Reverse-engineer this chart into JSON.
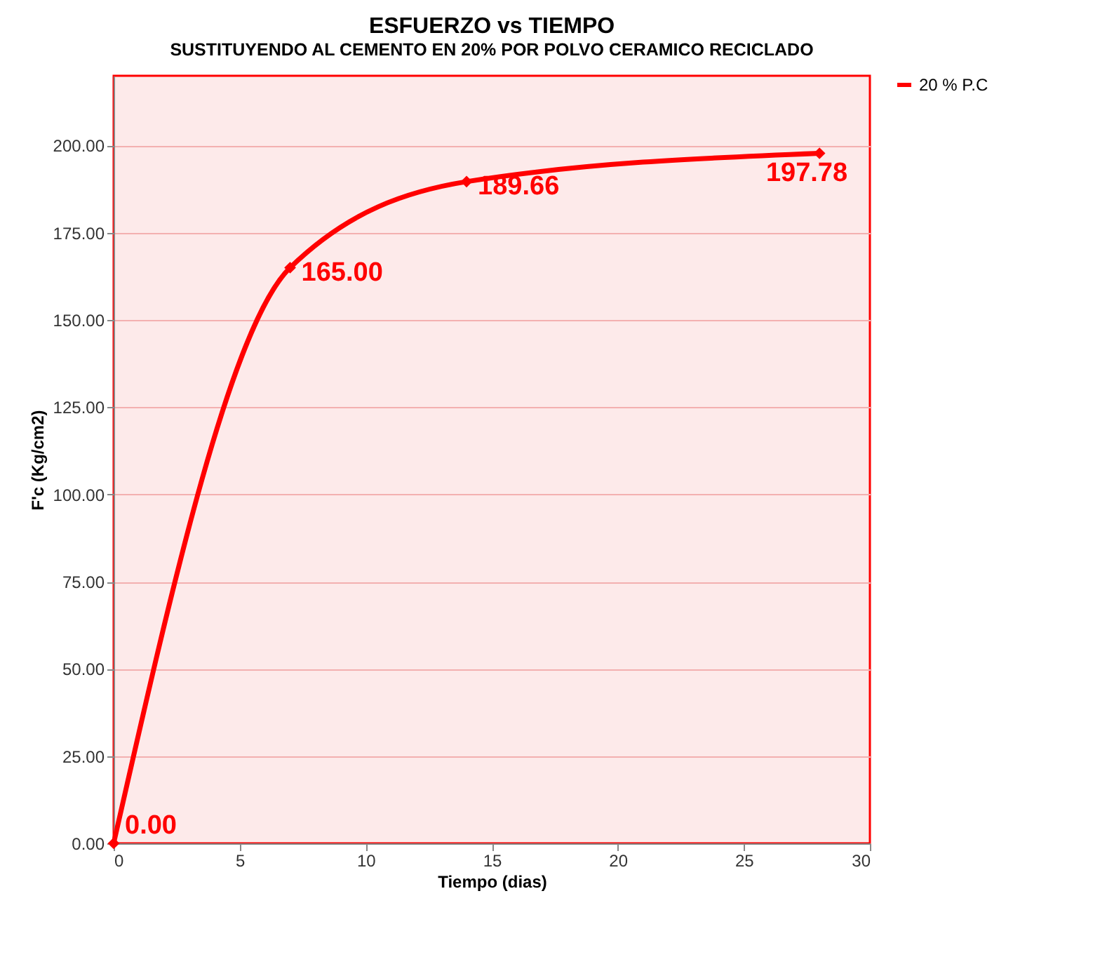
{
  "chart_data": {
    "type": "line",
    "title": "ESFUERZO vs TIEMPO",
    "subtitle": "SUSTITUYENDO AL CEMENTO EN 20% POR POLVO CERAMICO RECICLADO",
    "xlabel": "Tiempo (dias)",
    "ylabel": "F'c (Kg/cm2)",
    "x": [
      0,
      7,
      14,
      28
    ],
    "series": [
      {
        "name": "20 % P.C",
        "color": "#ff0000",
        "values": [
          0,
          165,
          189.66,
          197.78
        ],
        "value_labels": [
          "0.00",
          "165.00",
          "189.66",
          "197.78"
        ]
      }
    ],
    "xlim": [
      0,
      30
    ],
    "xticks": [
      0,
      5,
      10,
      15,
      20,
      25,
      30
    ],
    "ylim": [
      0,
      220
    ],
    "yticks": [
      {
        "value": 0,
        "label": "0.00"
      },
      {
        "value": 25,
        "label": "25.00"
      },
      {
        "value": 50,
        "label": "50.00"
      },
      {
        "value": 75,
        "label": "75.00"
      },
      {
        "value": 100,
        "label": "100.00"
      },
      {
        "value": 125,
        "label": "125.00"
      },
      {
        "value": 150,
        "label": "150.00"
      },
      {
        "value": 175,
        "label": "175.00"
      },
      {
        "value": 200,
        "label": "200.00"
      }
    ],
    "grid": "y",
    "legend": "right",
    "marker": "diamond",
    "line_style": "solid"
  }
}
